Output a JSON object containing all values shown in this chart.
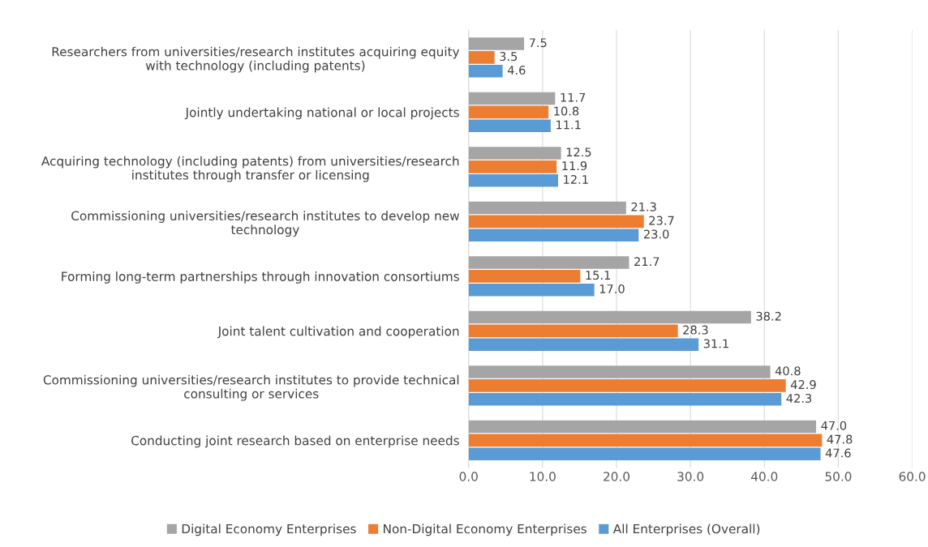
{
  "chart_data": {
    "type": "bar",
    "orientation": "horizontal",
    "categories": [
      "Researchers from universities/research institutes acquiring equity\nwith technology (including patents)",
      "Jointly undertaking national or local projects",
      "Acquiring technology (including patents) from universities/research\ninstitutes through transfer or licensing",
      "Commissioning universities/research institutes to develop new\ntechnology",
      "Forming long-term partnerships through innovation consortiums",
      "Joint talent cultivation and cooperation",
      "Commissioning universities/research institutes to provide technical\nconsulting or services",
      "Conducting joint research based on enterprise needs"
    ],
    "series": [
      {
        "name": "Digital Economy Enterprises",
        "color": "#a5a5a5",
        "values": [
          7.5,
          11.7,
          12.5,
          21.3,
          21.7,
          38.2,
          40.8,
          47.0
        ],
        "value_labels": [
          "7.5",
          "11.7",
          "12.5",
          "21.3",
          "21.7",
          "38.2",
          "40.8",
          "47.0"
        ]
      },
      {
        "name": "Non-Digital Economy Enterprises",
        "color": "#ed7d31",
        "values": [
          3.5,
          10.8,
          11.9,
          23.7,
          15.1,
          28.3,
          42.9,
          47.8
        ],
        "value_labels": [
          "3.5",
          "10.8",
          "11.9",
          "23.7",
          "15.1",
          "28.3",
          "42.9",
          "47.8"
        ]
      },
      {
        "name": "All Enterprises (Overall)",
        "color": "#5b9bd5",
        "values": [
          4.6,
          11.1,
          12.1,
          23.0,
          17.0,
          31.1,
          42.3,
          47.6
        ],
        "value_labels": [
          "4.6",
          "11.1",
          "12.1",
          "23.0",
          "17.0",
          "31.1",
          "42.3",
          "47.6"
        ]
      }
    ],
    "xlim": [
      0,
      60
    ],
    "xticks": [
      {
        "value": 0,
        "label": "0.0"
      },
      {
        "value": 10,
        "label": "10.0"
      },
      {
        "value": 20,
        "label": "20.0"
      },
      {
        "value": 30,
        "label": "30.0"
      },
      {
        "value": 40,
        "label": "40.0"
      },
      {
        "value": 50,
        "label": "50.0"
      },
      {
        "value": 60,
        "label": "60.0"
      }
    ],
    "grid": "x",
    "legend": "bottom"
  }
}
